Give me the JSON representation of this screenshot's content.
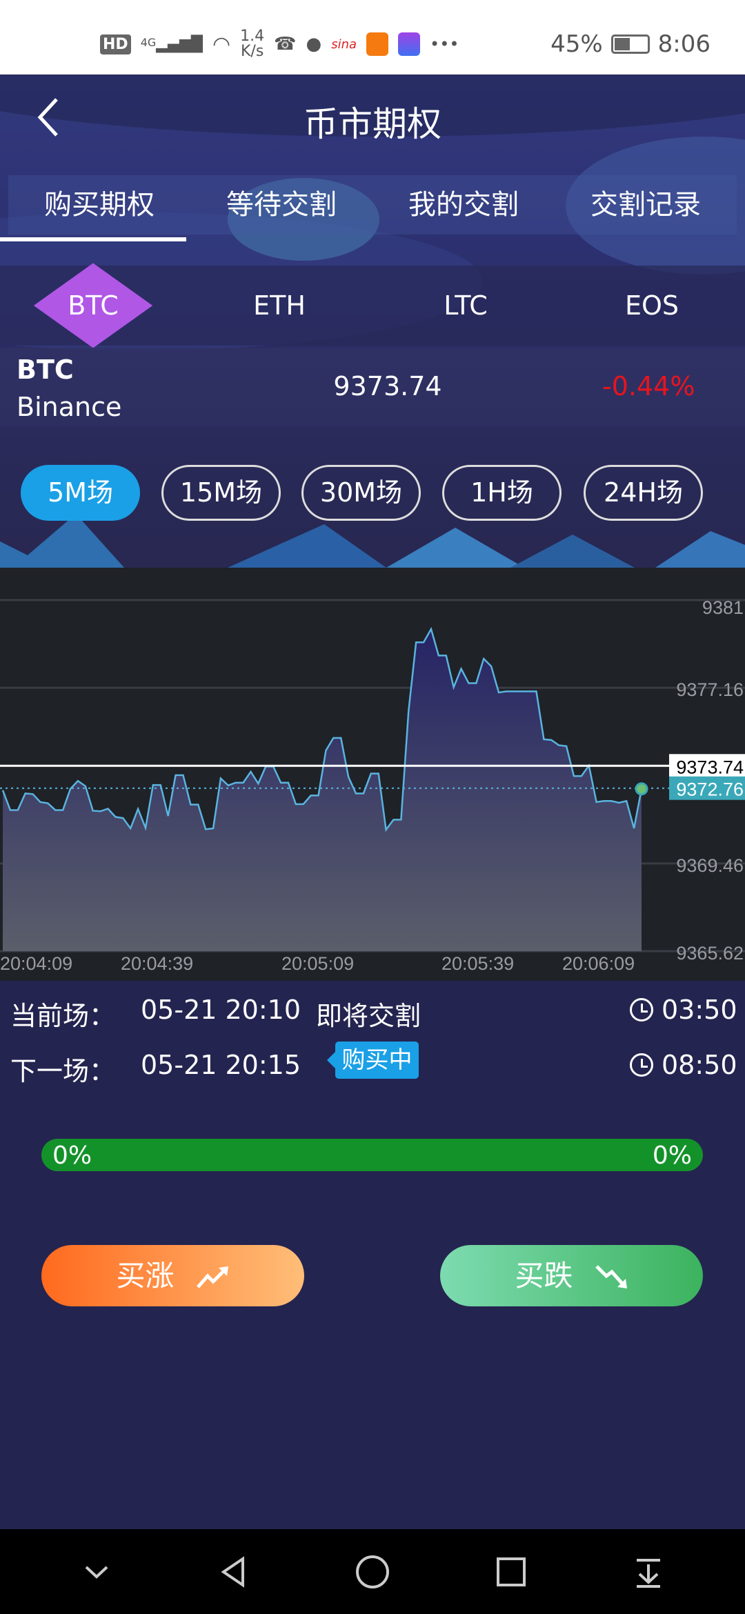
{
  "status_bar": {
    "net_speed_top": "1.4",
    "net_speed_bottom": "K/s",
    "battery": "45%",
    "time": "8:06",
    "hd": "HD",
    "network": "4G"
  },
  "header": {
    "title": "币市期权"
  },
  "tabs": [
    {
      "label": "购买期权",
      "active": true
    },
    {
      "label": "等待交割"
    },
    {
      "label": "我的交割"
    },
    {
      "label": "交割记录"
    }
  ],
  "coins": [
    {
      "label": "BTC",
      "active": true
    },
    {
      "label": "ETH"
    },
    {
      "label": "LTC"
    },
    {
      "label": "EOS"
    }
  ],
  "ticker": {
    "symbol": "BTC",
    "exchange": "Binance",
    "price": "9373.74",
    "change": "-0.44%",
    "change_color": "#e8141e"
  },
  "periods": [
    {
      "label": "5M场",
      "active": true
    },
    {
      "label": "15M场"
    },
    {
      "label": "30M场"
    },
    {
      "label": "1H场"
    },
    {
      "label": "24H场"
    }
  ],
  "chart_data": {
    "type": "area",
    "ylim": [
      9365.62,
      9381
    ],
    "y_ticks": [
      "9381",
      "9377.16",
      "9369.46",
      "9365.62"
    ],
    "x_ticks": [
      "20:04:09",
      "20:04:39",
      "20:05:09",
      "20:05:39",
      "20:06:09"
    ],
    "open_price": "9373.74",
    "current_price": "9372.76",
    "line_color": "#5ab4e0",
    "values": [
      9372.67,
      9371.8,
      9371.8,
      9372.53,
      9372.5,
      9372.15,
      9372.1,
      9371.8,
      9371.8,
      9372.73,
      9373.08,
      9372.85,
      9371.77,
      9371.75,
      9371.86,
      9371.5,
      9371.45,
      9371.0,
      9371.85,
      9371.02,
      9372.9,
      9372.9,
      9371.54,
      9373.33,
      9373.33,
      9372.04,
      9372.04,
      9370.96,
      9371.0,
      9373.19,
      9372.88,
      9373.0,
      9373.0,
      9373.48,
      9372.96,
      9373.71,
      9373.71,
      9373.0,
      9373.0,
      9372.06,
      9372.06,
      9372.44,
      9372.44,
      9374.41,
      9374.96,
      9374.96,
      9373.25,
      9372.53,
      9372.53,
      9373.4,
      9373.4,
      9370.94,
      9371.38,
      9371.38,
      9376.14,
      9379.15,
      9379.15,
      9379.73,
      9378.57,
      9378.57,
      9377.18,
      9377.99,
      9377.36,
      9377.36,
      9378.43,
      9378.1,
      9376.95,
      9377.0,
      9377.0,
      9377.0,
      9377.0,
      9377.0,
      9374.9,
      9374.87,
      9374.64,
      9374.6,
      9373.29,
      9373.29,
      9373.75,
      9372.15,
      9372.2,
      9372.2,
      9372.12,
      9372.2,
      9371.0,
      9372.73
    ]
  },
  "session": {
    "current_label": "当前场：",
    "current_time": "05-21 20:10",
    "current_status": "即将交割",
    "current_countdown": "03:50",
    "next_label": "下一场：",
    "next_time": "05-21 20:15",
    "next_status": "购买中",
    "next_countdown": "08:50"
  },
  "progress": {
    "up_percent": "0%",
    "down_percent": "0%",
    "color": "#14922a"
  },
  "actions": {
    "buy_up": "买涨",
    "buy_down": "买跌"
  }
}
